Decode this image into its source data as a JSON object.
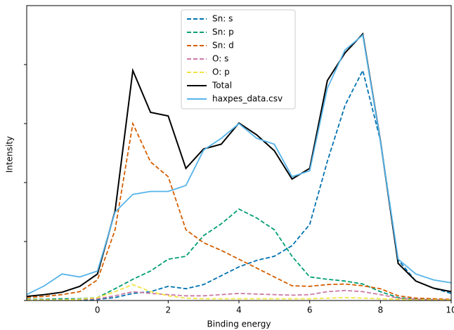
{
  "chart_data": {
    "type": "line",
    "x_label": "Binding energy",
    "y_label": "Intensity",
    "x": [
      -2,
      -1.5,
      -1,
      -0.5,
      0,
      0.5,
      1,
      1.5,
      2,
      2.5,
      3,
      3.5,
      4,
      4.5,
      5,
      5.5,
      6,
      6.5,
      7,
      7.5,
      8,
      8.5,
      9,
      9.5,
      10
    ],
    "xlim": [
      -2,
      10
    ],
    "xticks": [
      0,
      2,
      4,
      6,
      8,
      10
    ],
    "ylim": [
      0,
      5
    ],
    "yticks": [
      0,
      1,
      2,
      3,
      4
    ],
    "legend": "upper center",
    "series": [
      {
        "name": "Sn: s",
        "color": "#0072b2",
        "dashed": true,
        "values": [
          0.01,
          0.01,
          0.01,
          0.01,
          0.02,
          0.05,
          0.12,
          0.15,
          0.24,
          0.2,
          0.27,
          0.42,
          0.57,
          0.68,
          0.75,
          0.93,
          1.29,
          2.36,
          3.31,
          3.9,
          2.71,
          0.69,
          0.33,
          0.21,
          0.12
        ]
      },
      {
        "name": "Sn: p",
        "color": "#009e73",
        "dashed": true,
        "values": [
          0.02,
          0.02,
          0.03,
          0.03,
          0.05,
          0.2,
          0.36,
          0.5,
          0.7,
          0.75,
          1.1,
          1.3,
          1.55,
          1.4,
          1.2,
          0.75,
          0.4,
          0.36,
          0.33,
          0.28,
          0.15,
          0.05,
          0.02,
          0.02,
          0.01
        ]
      },
      {
        "name": "Sn: d",
        "color": "#d55e00",
        "dashed": true,
        "values": [
          0.05,
          0.07,
          0.1,
          0.15,
          0.35,
          1.2,
          3.0,
          2.35,
          2.1,
          1.2,
          0.98,
          0.85,
          0.7,
          0.55,
          0.4,
          0.25,
          0.24,
          0.27,
          0.28,
          0.25,
          0.2,
          0.08,
          0.04,
          0.03,
          0.02
        ]
      },
      {
        "name": "O: s",
        "color": "#cc79a7",
        "dashed": true,
        "values": [
          0.01,
          0.01,
          0.01,
          0.02,
          0.03,
          0.08,
          0.15,
          0.12,
          0.1,
          0.08,
          0.08,
          0.1,
          0.12,
          0.11,
          0.1,
          0.09,
          0.1,
          0.15,
          0.17,
          0.15,
          0.1,
          0.04,
          0.02,
          0.01,
          0.01
        ]
      },
      {
        "name": "O: p",
        "color": "#f0e442",
        "dashed": true,
        "values": [
          0.01,
          0.01,
          0.01,
          0.02,
          0.05,
          0.15,
          0.27,
          0.15,
          0.08,
          0.04,
          0.03,
          0.03,
          0.03,
          0.03,
          0.03,
          0.03,
          0.03,
          0.04,
          0.05,
          0.04,
          0.03,
          0.02,
          0.01,
          0.01,
          0.01
        ]
      },
      {
        "name": "Total",
        "color": "#000000",
        "dashed": false,
        "values": [
          0.07,
          0.1,
          0.14,
          0.24,
          0.45,
          1.52,
          3.9,
          3.19,
          3.13,
          2.24,
          2.57,
          2.65,
          3.01,
          2.81,
          2.54,
          2.06,
          2.24,
          3.73,
          4.2,
          4.52,
          2.71,
          0.63,
          0.33,
          0.21,
          0.15
        ]
      },
      {
        "name": "haxpes_data.csv",
        "color": "#56b4e9",
        "dashed": false,
        "values": [
          0.1,
          0.25,
          0.45,
          0.4,
          0.5,
          1.5,
          1.8,
          1.85,
          1.85,
          1.95,
          2.55,
          2.75,
          3.0,
          2.75,
          2.65,
          2.1,
          2.2,
          3.6,
          4.25,
          4.5,
          2.7,
          0.7,
          0.45,
          0.35,
          0.3
        ]
      }
    ]
  }
}
